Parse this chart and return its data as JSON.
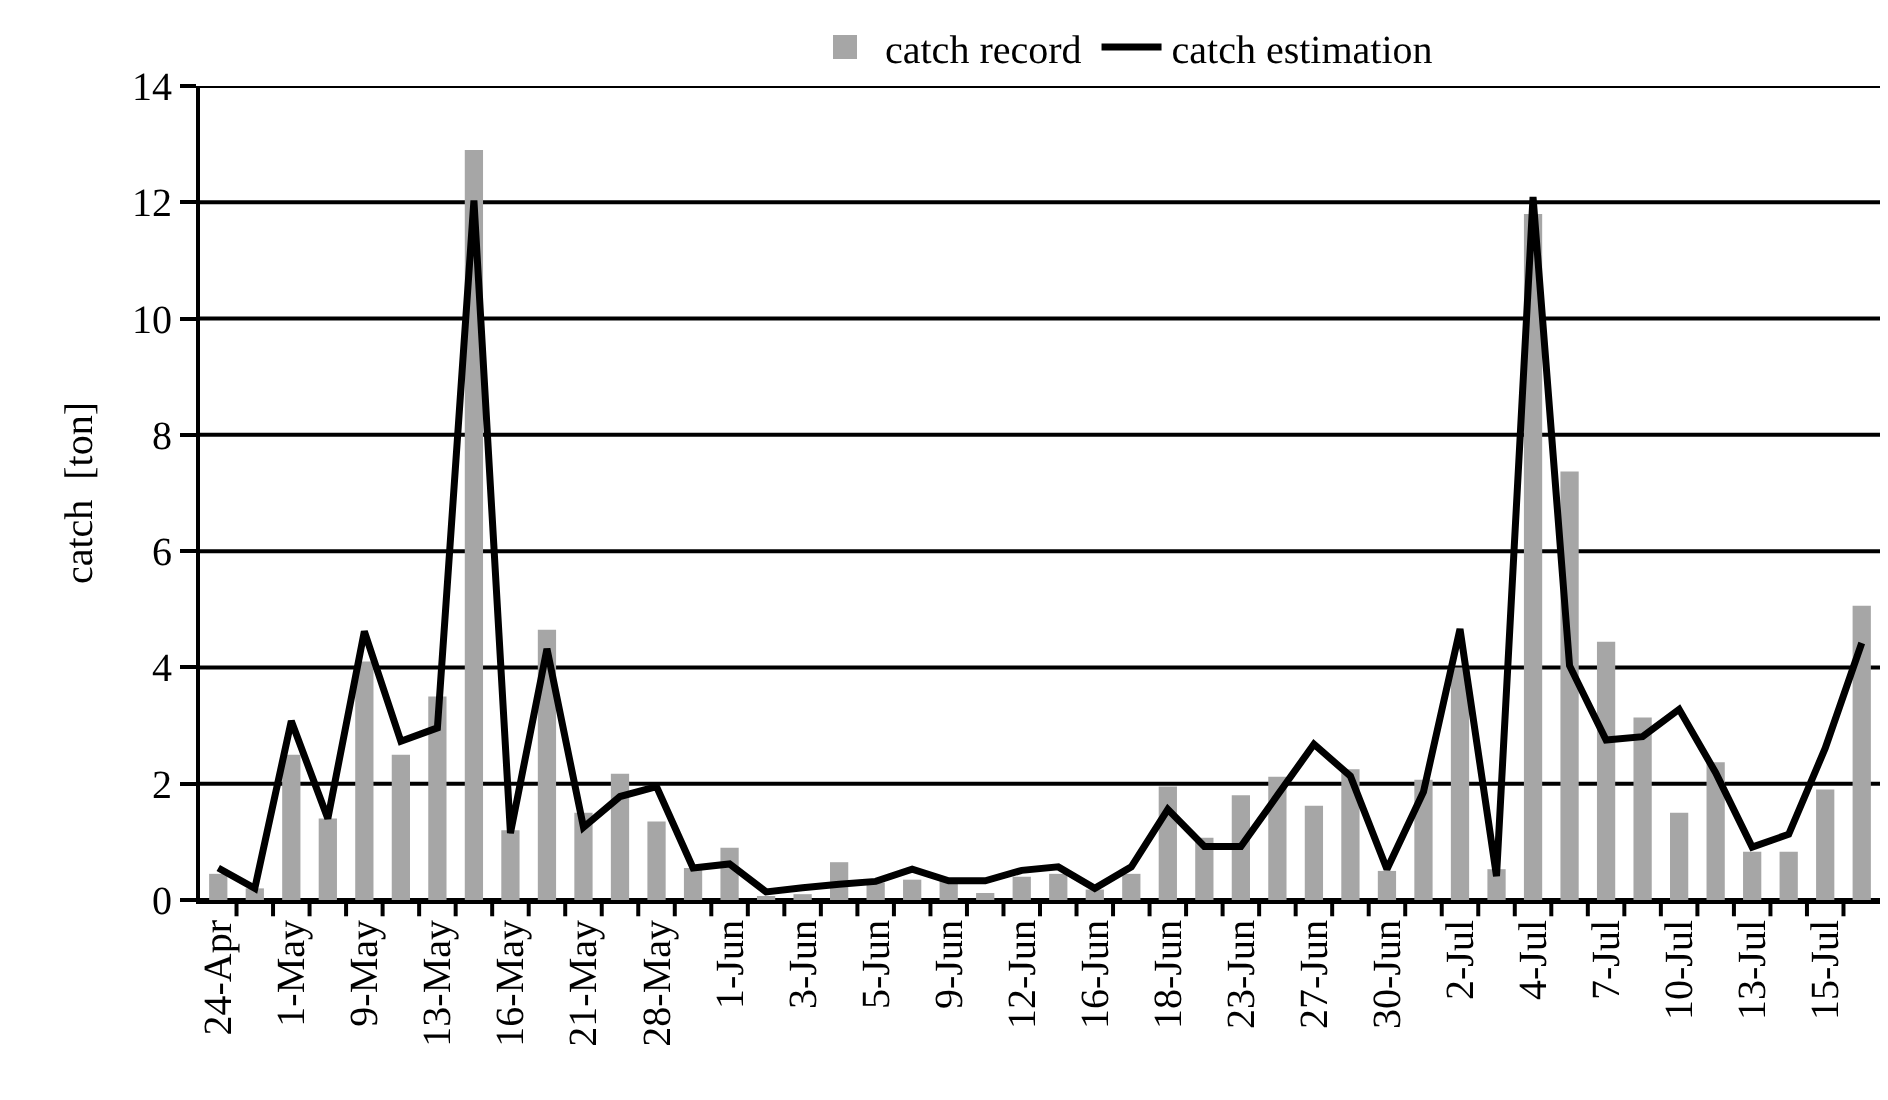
{
  "chart_data": {
    "type": "bar",
    "ylabel": "catch  [ton]",
    "categories": [
      "24-Apr",
      null,
      "1-May",
      null,
      "9-May",
      null,
      "13-May",
      null,
      "16-May",
      null,
      "21-May",
      null,
      "28-May",
      null,
      "1-Jun",
      null,
      "3-Jun",
      null,
      "5-Jun",
      null,
      "9-Jun",
      null,
      "12-Jun",
      null,
      "16-Jun",
      null,
      "18-Jun",
      null,
      "23-Jun",
      null,
      "27-Jun",
      null,
      "30-Jun",
      null,
      "2-Jul",
      null,
      "4-Jul",
      null,
      "7-Jul",
      null,
      "10-Jul",
      null,
      "13-Jul",
      null,
      "15-Jul",
      null
    ],
    "series": [
      {
        "name": "catch record",
        "color": "#a6a6a6",
        "values": [
          0.45,
          0.2,
          2.5,
          1.4,
          4.1,
          2.5,
          3.5,
          12.9,
          1.2,
          4.65,
          1.5,
          2.17,
          1.35,
          0.55,
          0.9,
          0.06,
          0.1,
          0.65,
          0.3,
          0.35,
          0.35,
          0.12,
          0.4,
          0.45,
          0.18,
          0.45,
          1.95,
          1.07,
          1.8,
          2.12,
          1.62,
          2.25,
          0.5,
          2.07,
          4.0,
          0.53,
          11.8,
          7.37,
          4.44,
          3.14,
          1.5,
          2.37,
          0.83,
          0.83,
          1.9,
          5.06
        ]
      },
      {
        "name": "catch estimation",
        "type": "line",
        "color": "#000000",
        "values": [
          0.55,
          0.2,
          3.08,
          1.4,
          4.62,
          2.73,
          2.96,
          12.03,
          1.15,
          4.32,
          1.25,
          1.78,
          1.95,
          0.55,
          0.62,
          0.14,
          0.21,
          0.27,
          0.32,
          0.53,
          0.33,
          0.33,
          0.51,
          0.57,
          0.2,
          0.57,
          1.56,
          0.92,
          0.92,
          1.8,
          2.68,
          2.13,
          0.53,
          1.86,
          4.66,
          0.41,
          12.09,
          4.03,
          2.75,
          2.81,
          3.28,
          2.19,
          0.91,
          1.13,
          2.61,
          4.42
        ]
      }
    ],
    "ylim": [
      0,
      14
    ],
    "yticks": [
      0,
      2,
      4,
      6,
      8,
      10,
      12,
      14
    ],
    "grid": "y",
    "legend": "top",
    "marker": "none",
    "line_style": "solid"
  }
}
